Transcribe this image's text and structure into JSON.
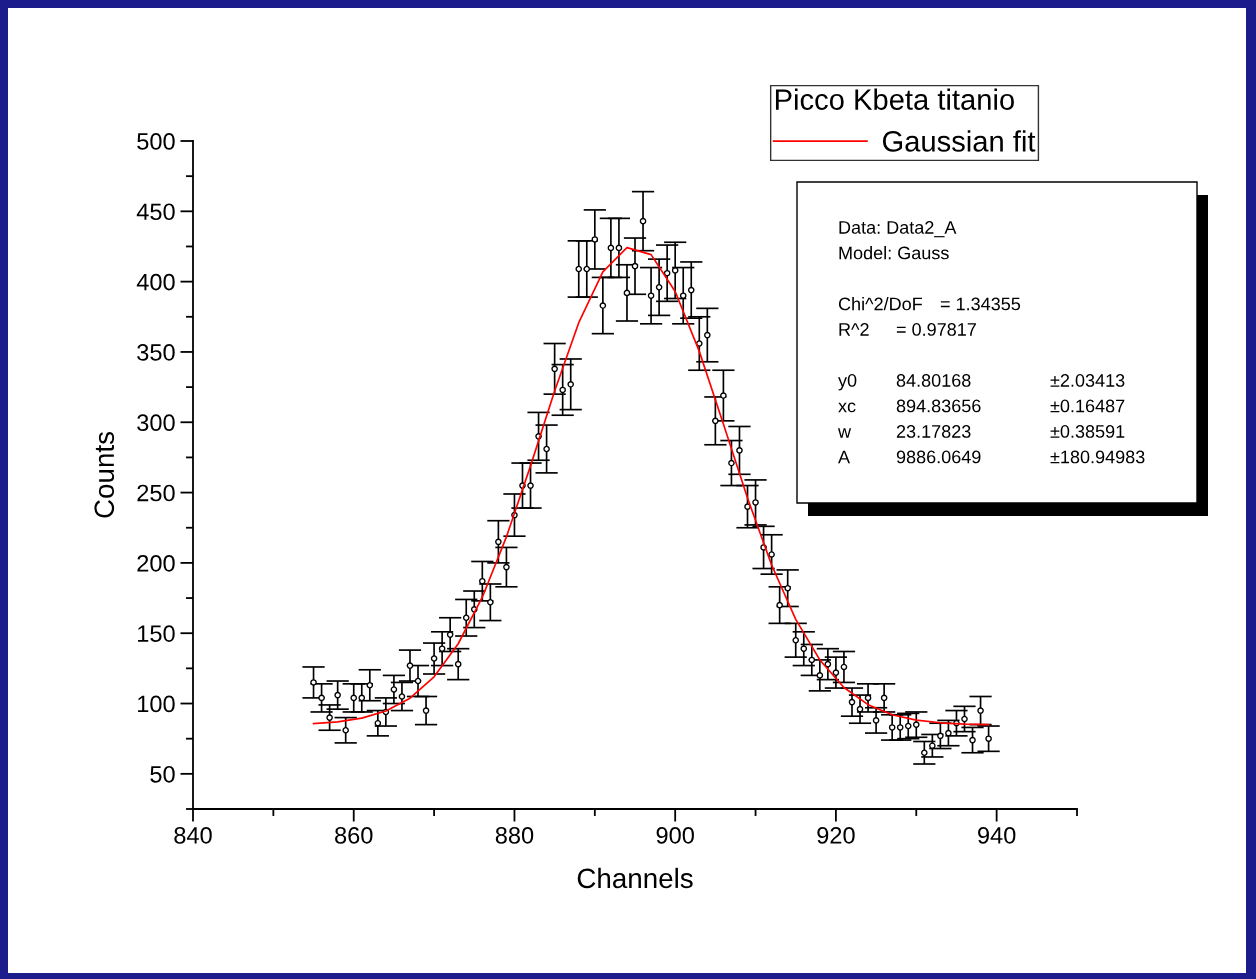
{
  "chart_data": {
    "type": "scatter",
    "xlabel": "Channels",
    "ylabel": "Counts",
    "legend_title": "Picco Kbeta titanio",
    "legend": "top right",
    "grid": false,
    "xlim": [
      840,
      950
    ],
    "xticks": [
      840,
      860,
      880,
      900,
      920,
      940
    ],
    "ylim": [
      25,
      500
    ],
    "yticks": [
      50,
      100,
      150,
      200,
      250,
      300,
      350,
      400,
      450,
      500
    ],
    "series": [
      {
        "marker": "circle",
        "color": "#000000",
        "x": [
          855,
          856,
          857,
          858,
          859,
          860,
          861,
          862,
          863,
          864,
          865,
          866,
          867,
          868,
          869,
          870,
          871,
          872,
          873,
          874,
          875,
          876,
          877,
          878,
          879,
          880,
          881,
          882,
          883,
          884,
          885,
          886,
          887,
          888,
          889,
          890,
          891,
          892,
          893,
          894,
          895,
          896,
          897,
          898,
          899,
          900,
          901,
          902,
          903,
          904,
          905,
          906,
          907,
          908,
          909,
          910,
          911,
          912,
          913,
          914,
          915,
          916,
          917,
          918,
          919,
          920,
          921,
          922,
          923,
          924,
          925,
          926,
          927,
          928,
          929,
          930,
          931,
          932,
          933,
          934,
          935,
          936,
          937,
          938,
          939
        ],
        "values": [
          115,
          104,
          90,
          106,
          81,
          104,
          104,
          113,
          86,
          94,
          110,
          105,
          127,
          116,
          95,
          132,
          139,
          149,
          128,
          161,
          167,
          187,
          172,
          215,
          197,
          234,
          255,
          255,
          290,
          281,
          338,
          323,
          327,
          409,
          409,
          430,
          383,
          424,
          424,
          392,
          411,
          443,
          390,
          396,
          406,
          408,
          390,
          394,
          356,
          362,
          301,
          319,
          271,
          280,
          240,
          243,
          211,
          206,
          170,
          182,
          145,
          139,
          131,
          120,
          128,
          122,
          126,
          101,
          96,
          104,
          88,
          104,
          83,
          83,
          84,
          85,
          65,
          70,
          77,
          79,
          86,
          89,
          74,
          95,
          75
        ],
        "errors": [
          11,
          10,
          9,
          10,
          9,
          10,
          10,
          11,
          9,
          10,
          10,
          10,
          11,
          11,
          10,
          11,
          12,
          12,
          11,
          13,
          13,
          14,
          13,
          15,
          14,
          15,
          16,
          16,
          17,
          17,
          18,
          18,
          18,
          20,
          20,
          21,
          20,
          21,
          21,
          20,
          20,
          21,
          20,
          20,
          20,
          20,
          20,
          20,
          19,
          19,
          17,
          18,
          16,
          17,
          15,
          16,
          15,
          14,
          13,
          13,
          12,
          12,
          11,
          11,
          11,
          11,
          11,
          10,
          10,
          10,
          9,
          10,
          9,
          9,
          9,
          9,
          8,
          8,
          9,
          9,
          9,
          9,
          9,
          10,
          9
        ]
      },
      {
        "type": "line",
        "name": "Gaussian fit",
        "color": "#ff0000",
        "x": [
          855,
          858,
          861,
          864,
          867,
          870,
          873,
          876,
          879,
          882,
          885,
          888,
          891,
          894,
          897,
          900,
          903,
          906,
          909,
          912,
          915,
          918,
          921,
          924,
          927,
          930,
          933,
          936,
          939
        ],
        "values": [
          85.7,
          87.0,
          89.6,
          94.7,
          103.8,
          119.0,
          142.5,
          175.6,
          218.5,
          269.0,
          322.2,
          370.8,
          406.9,
          424.2,
          419.2,
          393.0,
          350.4,
          298.8,
          246.1,
          198.5,
          159.8,
          131.0,
          111.4,
          99.2,
          92.0,
          88.2,
          86.3,
          85.4,
          85.0
        ]
      }
    ],
    "annotations": [
      "Data: Data2_A",
      "Model: Gauss",
      "Chi^2/DoF\t= 1.34355",
      "R^2\t= 0.97817",
      "y0\t84.80168\t±2.03413",
      "xc\t894.83656\t±0.16487",
      "w\t23.17823\t±0.38591",
      "A\t9886.0649\t±180.94983"
    ]
  }
}
